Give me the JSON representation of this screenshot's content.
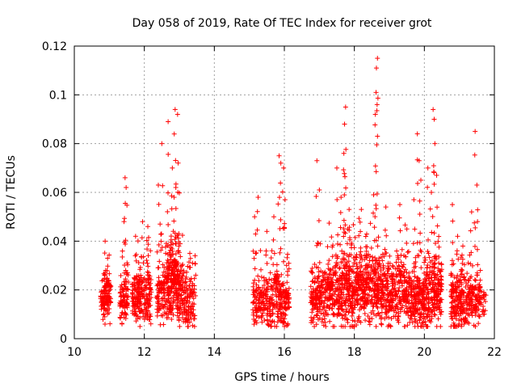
{
  "chart_data": {
    "type": "scatter",
    "title": "Day 058 of 2019, Rate Of TEC Index for receiver grot",
    "xlabel": "GPS time / hours",
    "ylabel": "ROTI / TECUs",
    "xlim": [
      10,
      22
    ],
    "ylim": [
      0,
      0.12
    ],
    "x_ticks": [
      10,
      12,
      14,
      16,
      18,
      20,
      22
    ],
    "x_tick_labels": [
      "10",
      "12",
      "14",
      "16",
      "18",
      "20",
      "22"
    ],
    "y_ticks": [
      0,
      0.02,
      0.04,
      0.06,
      0.08,
      0.1,
      0.12
    ],
    "y_tick_labels": [
      "0",
      "0.02",
      "0.04",
      "0.06",
      "0.08",
      "0.1",
      "0.12"
    ],
    "grid": true,
    "marker": "plus",
    "series": [
      {
        "name": "ROTI",
        "color": "#ff0000",
        "clusters": [
          {
            "x_start": 10.75,
            "x_end": 11.05,
            "y_base": 0.016,
            "y_spread": 0.007,
            "n": 110,
            "peaks": [
              [
                10.88,
                0.04
              ],
              [
                10.95,
                0.033
              ]
            ]
          },
          {
            "x_start": 11.3,
            "x_end": 11.55,
            "y_base": 0.016,
            "y_spread": 0.007,
            "n": 90,
            "peaks": [
              [
                11.45,
                0.066
              ],
              [
                11.48,
                0.062
              ],
              [
                11.42,
                0.048
              ]
            ]
          },
          {
            "x_start": 11.65,
            "x_end": 12.2,
            "y_base": 0.017,
            "y_spread": 0.008,
            "n": 220,
            "peaks": [
              [
                11.75,
                0.042
              ],
              [
                11.95,
                0.048
              ],
              [
                12.1,
                0.046
              ]
            ]
          },
          {
            "x_start": 12.35,
            "x_end": 12.6,
            "y_base": 0.018,
            "y_spread": 0.008,
            "n": 80,
            "peaks": [
              [
                12.4,
                0.063
              ],
              [
                12.5,
                0.08
              ],
              [
                12.45,
                0.047
              ]
            ]
          },
          {
            "x_start": 12.6,
            "x_end": 13.1,
            "y_base": 0.022,
            "y_spread": 0.01,
            "n": 300,
            "peaks": [
              [
                12.68,
                0.089
              ],
              [
                12.88,
                0.094
              ],
              [
                12.95,
                0.092
              ],
              [
                12.8,
                0.07
              ],
              [
                12.9,
                0.062
              ],
              [
                12.85,
                0.058
              ]
            ]
          },
          {
            "x_start": 13.1,
            "x_end": 13.45,
            "y_base": 0.015,
            "y_spread": 0.007,
            "n": 110,
            "peaks": [
              [
                13.3,
                0.035
              ],
              [
                13.45,
                0.034
              ]
            ]
          },
          {
            "x_start": 15.1,
            "x_end": 15.55,
            "y_base": 0.015,
            "y_spread": 0.007,
            "n": 130,
            "peaks": [
              [
                15.15,
                0.05
              ],
              [
                15.25,
                0.058
              ],
              [
                15.5,
                0.044
              ]
            ]
          },
          {
            "x_start": 15.55,
            "x_end": 16.15,
            "y_base": 0.016,
            "y_spread": 0.008,
            "n": 210,
            "peaks": [
              [
                15.85,
                0.075
              ],
              [
                15.9,
                0.072
              ],
              [
                15.98,
                0.07
              ],
              [
                16.02,
                0.057
              ],
              [
                15.7,
                0.05
              ]
            ]
          },
          {
            "x_start": 16.75,
            "x_end": 17.25,
            "y_base": 0.017,
            "y_spread": 0.008,
            "n": 180,
            "peaks": [
              [
                16.93,
                0.073
              ],
              [
                17.0,
                0.061
              ],
              [
                17.5,
                0.07
              ]
            ]
          },
          {
            "x_start": 17.25,
            "x_end": 18.0,
            "y_base": 0.02,
            "y_spread": 0.01,
            "n": 320,
            "peaks": [
              [
                17.75,
                0.095
              ],
              [
                17.72,
                0.088
              ],
              [
                17.7,
                0.076
              ],
              [
                17.62,
                0.058
              ],
              [
                17.85,
                0.053
              ]
            ]
          },
          {
            "x_start": 18.0,
            "x_end": 18.7,
            "y_base": 0.021,
            "y_spread": 0.01,
            "n": 300,
            "peaks": [
              [
                18.66,
                0.115
              ],
              [
                18.63,
                0.111
              ],
              [
                18.62,
                0.101
              ],
              [
                18.65,
                0.096
              ],
              [
                18.6,
                0.092
              ],
              [
                18.55,
                0.059
              ],
              [
                18.2,
                0.053
              ]
            ]
          },
          {
            "x_start": 18.7,
            "x_end": 19.5,
            "y_base": 0.019,
            "y_spread": 0.009,
            "n": 300,
            "peaks": [
              [
                18.9,
                0.054
              ],
              [
                19.3,
                0.055
              ],
              [
                19.5,
                0.045
              ]
            ]
          },
          {
            "x_start": 19.5,
            "x_end": 20.0,
            "y_base": 0.016,
            "y_spread": 0.008,
            "n": 200,
            "peaks": [
              [
                19.8,
                0.084
              ],
              [
                19.85,
                0.073
              ],
              [
                19.9,
                0.065
              ],
              [
                19.7,
                0.057
              ]
            ]
          },
          {
            "x_start": 20.0,
            "x_end": 20.5,
            "y_base": 0.018,
            "y_spread": 0.009,
            "n": 220,
            "peaks": [
              [
                20.25,
                0.094
              ],
              [
                20.28,
                0.09
              ],
              [
                20.3,
                0.08
              ],
              [
                20.1,
                0.07
              ],
              [
                20.2,
                0.06
              ],
              [
                20.35,
                0.067
              ]
            ]
          },
          {
            "x_start": 20.75,
            "x_end": 21.15,
            "y_base": 0.015,
            "y_spread": 0.008,
            "n": 170,
            "peaks": [
              [
                20.8,
                0.055
              ],
              [
                20.95,
                0.042
              ],
              [
                21.1,
                0.038
              ]
            ]
          },
          {
            "x_start": 21.15,
            "x_end": 21.6,
            "y_base": 0.015,
            "y_spread": 0.007,
            "n": 140,
            "peaks": [
              [
                21.45,
                0.085
              ],
              [
                21.5,
                0.063
              ],
              [
                21.35,
                0.052
              ],
              [
                21.6,
                0.028
              ]
            ]
          },
          {
            "x_start": 21.6,
            "x_end": 21.8,
            "y_base": 0.014,
            "y_spread": 0.005,
            "n": 15,
            "peaks": [
              [
                21.7,
                0.019
              ]
            ]
          }
        ]
      }
    ]
  }
}
